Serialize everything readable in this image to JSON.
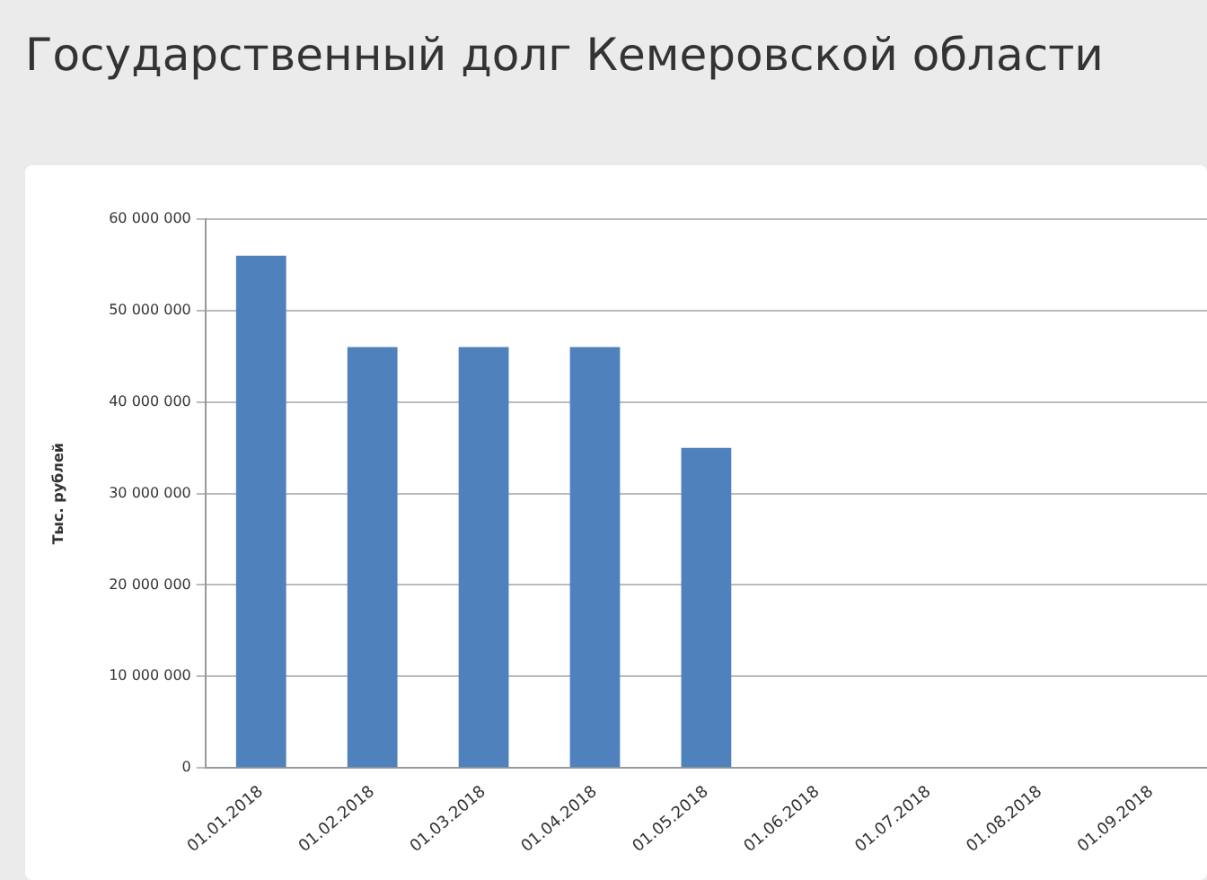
{
  "chart_data": {
    "type": "bar",
    "title": "Государственный долг Кемеровской области",
    "ylabel": "Тыс. рублей",
    "categories": [
      "01.01.2018",
      "01.02.2018",
      "01.03.2018",
      "01.04.2018",
      "01.05.2018",
      "01.06.2018",
      "01.07.2018",
      "01.08.2018",
      "01.09.2018"
    ],
    "values": [
      56000000,
      46000000,
      46000000,
      46000000,
      35000000,
      null,
      null,
      null,
      null
    ],
    "color": "#4f81bd",
    "ylim": [
      0,
      60000000
    ],
    "yticks": [
      {
        "value": 0,
        "label": "0"
      },
      {
        "value": 10000000,
        "label": "10 000 000"
      },
      {
        "value": 20000000,
        "label": "20 000 000"
      },
      {
        "value": 30000000,
        "label": "30 000 000"
      },
      {
        "value": 40000000,
        "label": "40 000 000"
      },
      {
        "value": 50000000,
        "label": "50 000 000"
      },
      {
        "value": 60000000,
        "label": "60 000 000"
      }
    ],
    "grid": "y",
    "legend": false
  }
}
